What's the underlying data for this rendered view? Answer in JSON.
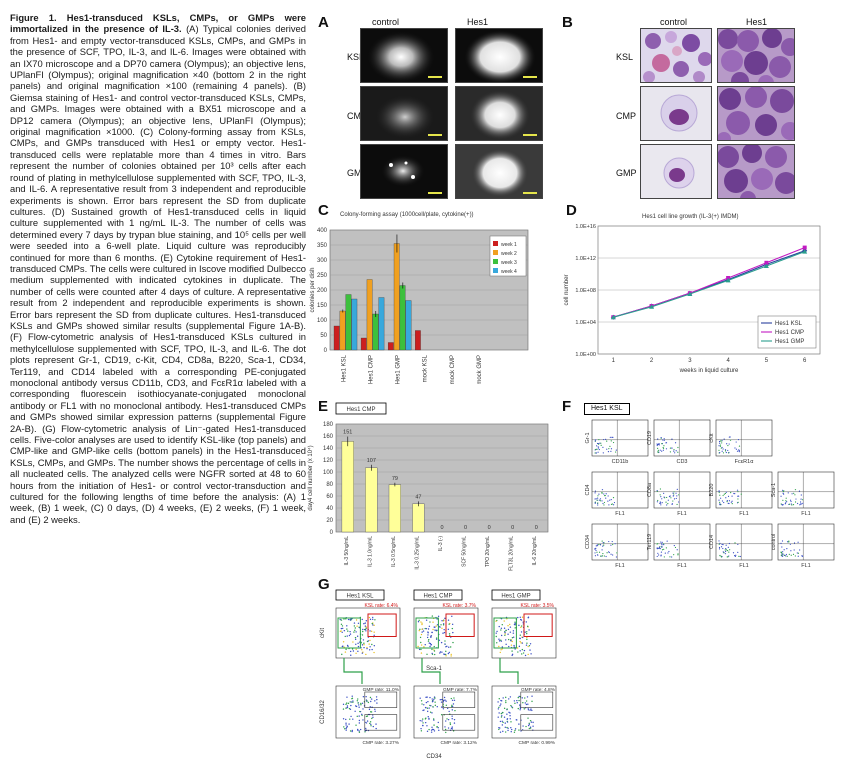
{
  "figure": {
    "title": "Figure 1. Hes1-transduced KSLs, CMPs, or GMPs were immortalized in the presence of IL-3.",
    "legend": " (A) Typical colonies derived from Hes1- and empty vector-transduced KSLs, CMPs, and GMPs in the presence of SCF, TPO, IL-3, and IL-6. Images were obtained with an IX70 microscope and a DP70 camera (Olympus); an objective lens, UPlanFI (Olympus); original magnification ×40 (bottom 2 in the right panels) and original magnification ×100 (remaining 4 panels). (B) Giemsa staining of Hes1- and control vector-transduced KSLs, CMPs, and GMPs. Images were obtained with a BX51 microscope and a DP12 camera (Olympus); an objective lens, UPlanFI (Olympus); original magnification ×1000. (C) Colony-forming assay from KSLs, CMPs, and GMPs transduced with Hes1 or empty vector. Hes1-transduced cells were replatable more than 4 times in vitro. Bars represent the number of colonies obtained per 10³ cells after each round of plating in methylcellulose supplemented with SCF, TPO, IL-3, and IL-6. A representative result from 3 independent and reproducible experiments is shown. Error bars represent the SD from duplicate cultures. (D) Sustained growth of Hes1-transduced cells in liquid culture supplemented with 1 ng/mL IL-3. The number of cells was determined every 7 days by trypan blue staining, and 10⁵ cells per well were seeded into a 6-well plate. Liquid culture was reproducibly continued for more than 6 months. (E) Cytokine requirement of Hes1-transduced CMPs. The cells were cultured in Iscove modified Dulbecco medium supplemented with indicated cytokines in duplicate. The number of cells were counted after 4 days of culture. A representative result from 2 independent and reproducible experiments is shown. Error bars represent the SD from duplicate cultures. Hes1-transduced KSLs and GMPs showed similar results (supplemental Figure 1A-B). (F) Flow-cytometric analysis of Hes1-transduced KSLs cultured in methylcellulose supplemented with SCF, TPO, IL-3, and IL-6. The dot plots represent Gr-1, CD19, c-Kit, CD4, CD8a, B220, Sca-1, CD34, Ter119, and CD14 labeled with a corresponding PE-conjugated monoclonal antibody versus CD11b, CD3, and FcεR1α labeled with a corresponding fluorescein isothiocyanate-conjugated monoclonal antibody or FL1 with no monoclonal antibody. Hes1-transduced CMPs and GMPs showed similar expression patterns (supplemental Figure 2A-B). (G) Flow-cytometric analysis of Lin⁻-gated Hes1-transduced cells. Five-color analyses are used to identify KSL-like (top panels) and CMP-like and GMP-like cells (bottom panels) in the Hes1-transduced KSLs, CMPs, and GMPs. The number shows the percentage of cells in all nucleated cells. The analyzed cells were NGFR sorted at 48 to 60 hours from the initiation of Hes1- or control vector-transduction and cultured for the following lengths of time before the analysis: (A) 1 week, (B) 1 week, (C) 0 days, (D) 4 weeks, (E) 2 weeks, (F) 1 week, and (E) 2 weeks."
  },
  "panels": {
    "A": {
      "letter": "A",
      "cols": [
        "control",
        "Hes1"
      ],
      "rows": [
        "KSL",
        "CMP",
        "GMP"
      ]
    },
    "B": {
      "letter": "B",
      "cols": [
        "control",
        "Hes1"
      ],
      "rows": [
        "KSL",
        "CMP",
        "GMP"
      ]
    },
    "C": {
      "letter": "C"
    },
    "D": {
      "letter": "D"
    },
    "E": {
      "letter": "E"
    },
    "F": {
      "letter": "F",
      "label": "Hes1 KSL"
    },
    "G": {
      "letter": "G"
    }
  },
  "chart_data": [
    {
      "id": "C",
      "type": "bar",
      "title": "Colony-forming assay (1000cell/plate, cytokine(+))",
      "ylabel": "colonies per dish",
      "ylim": [
        0,
        400
      ],
      "yticks": [
        0,
        50,
        100,
        150,
        200,
        250,
        300,
        350,
        400
      ],
      "categories": [
        "Hes1 KSL",
        "Hes1 CMP",
        "Hes1 GMP",
        "mock KSL",
        "mock CMP",
        "mock GMP"
      ],
      "series": [
        {
          "name": "week 1",
          "color": "#cc1f1f",
          "values": [
            80,
            40,
            25,
            65,
            0,
            0
          ],
          "err": [
            0,
            0,
            0,
            0,
            0,
            0
          ]
        },
        {
          "name": "week 2",
          "color": "#f0a020",
          "values": [
            130,
            235,
            355,
            0,
            0,
            0
          ],
          "err": [
            5,
            0,
            30,
            0,
            0,
            0
          ]
        },
        {
          "name": "week 3",
          "color": "#3cc03c",
          "values": [
            185,
            120,
            215,
            0,
            0,
            0
          ],
          "err": [
            0,
            10,
            10,
            0,
            0,
            0
          ]
        },
        {
          "name": "week 4",
          "color": "#38a8dc",
          "values": [
            170,
            175,
            165,
            0,
            0,
            0
          ],
          "err": [
            0,
            0,
            0,
            0,
            0,
            0
          ]
        }
      ]
    },
    {
      "id": "D",
      "type": "line",
      "title": "Hes1 cell line growth (IL-3(+) IMDM)",
      "xlabel": "weeks in liquid culture",
      "ylabel": "cell number",
      "yscale": "log",
      "xlim": [
        0.6,
        6.4
      ],
      "x": [
        1,
        2,
        3,
        4,
        5,
        6
      ],
      "yticklabels": [
        "1.0E+00",
        "1.0E+04",
        "1.0E+08",
        "1.0E+12",
        "1.0E+16"
      ],
      "ylim_exp": [
        0,
        16
      ],
      "series": [
        {
          "name": "Hes1 KSL",
          "color": "#2a3f9e",
          "marker": "diamond",
          "exp": [
            4.6,
            6.0,
            7.6,
            9.3,
            11.2,
            12.9
          ]
        },
        {
          "name": "Hes1 CMP",
          "color": "#c21ac2",
          "marker": "square",
          "exp": [
            4.6,
            6.0,
            7.6,
            9.5,
            11.4,
            13.3
          ]
        },
        {
          "name": "Hes1 GMP",
          "color": "#2a9e8e",
          "marker": "triangle",
          "exp": [
            4.6,
            5.9,
            7.5,
            9.2,
            11.0,
            12.8
          ]
        }
      ]
    },
    {
      "id": "E",
      "type": "bar",
      "title": "Hes1 CMP",
      "ylabel": "day4 cell number (x 10⁴)",
      "ylim": [
        0,
        180
      ],
      "yticks": [
        0,
        20,
        40,
        60,
        80,
        100,
        120,
        140,
        160,
        180
      ],
      "categories": [
        "IL-3 50ng/mL",
        "IL-3 1.0ng/mL",
        "IL-3 0.5ng/mL",
        "IL-3 0.25ng/mL",
        "IL-3 (-)",
        "SCF 50ng/mL",
        "TPO 20ng/mL",
        "FLT3L 20ng/mL",
        "IL-6 20ng/mL"
      ],
      "values": [
        151,
        107,
        79,
        47,
        0,
        0,
        0,
        0,
        0
      ],
      "labels": [
        "151",
        "107",
        "79",
        "47",
        "0",
        "0",
        "0",
        "0",
        "0"
      ],
      "err": [
        8,
        5,
        3,
        4,
        0,
        0,
        0,
        0,
        0
      ],
      "color": "#ffff99"
    }
  ],
  "flow_F": {
    "plots": [
      {
        "y": "Gr-1",
        "x": "CD11b"
      },
      {
        "y": "CD19",
        "x": "CD3"
      },
      {
        "y": "cKit",
        "x": "FcεR1α"
      },
      {
        "y": "",
        "x": ""
      },
      {
        "y": "CD4",
        "x": "FL1"
      },
      {
        "y": "CD8a",
        "x": "FL1"
      },
      {
        "y": "B220",
        "x": "FL1"
      },
      {
        "y": "Sca-1",
        "x": "FL1"
      },
      {
        "y": "CD34",
        "x": "FL1"
      },
      {
        "y": "Ter119",
        "x": "FL1"
      },
      {
        "y": "CD14",
        "x": "FL1"
      },
      {
        "y": "control",
        "x": "FL1"
      }
    ]
  },
  "flow_G": {
    "columns": [
      {
        "label": "Hes1 KSL",
        "ksl": "KSL rate: 6.4%",
        "gmp": "GMP rate: 11.0%",
        "cmp": "CMP rate: 3.27%"
      },
      {
        "label": "Hes1 CMP",
        "ksl": "KSL rate: 3.7%",
        "gmp": "GMP rate: 7.7%",
        "cmp": "CMP rate: 3.12%"
      },
      {
        "label": "Hes1 GMP",
        "ksl": "KSL rate: 3.5%",
        "gmp": "GMP rate: 4.8%",
        "cmp": "CMP rate: 0.99%"
      }
    ],
    "top_y": "cKit",
    "top_x": "Sca-1",
    "bottom_y": "CD16/32",
    "bottom_x": "CD34"
  }
}
